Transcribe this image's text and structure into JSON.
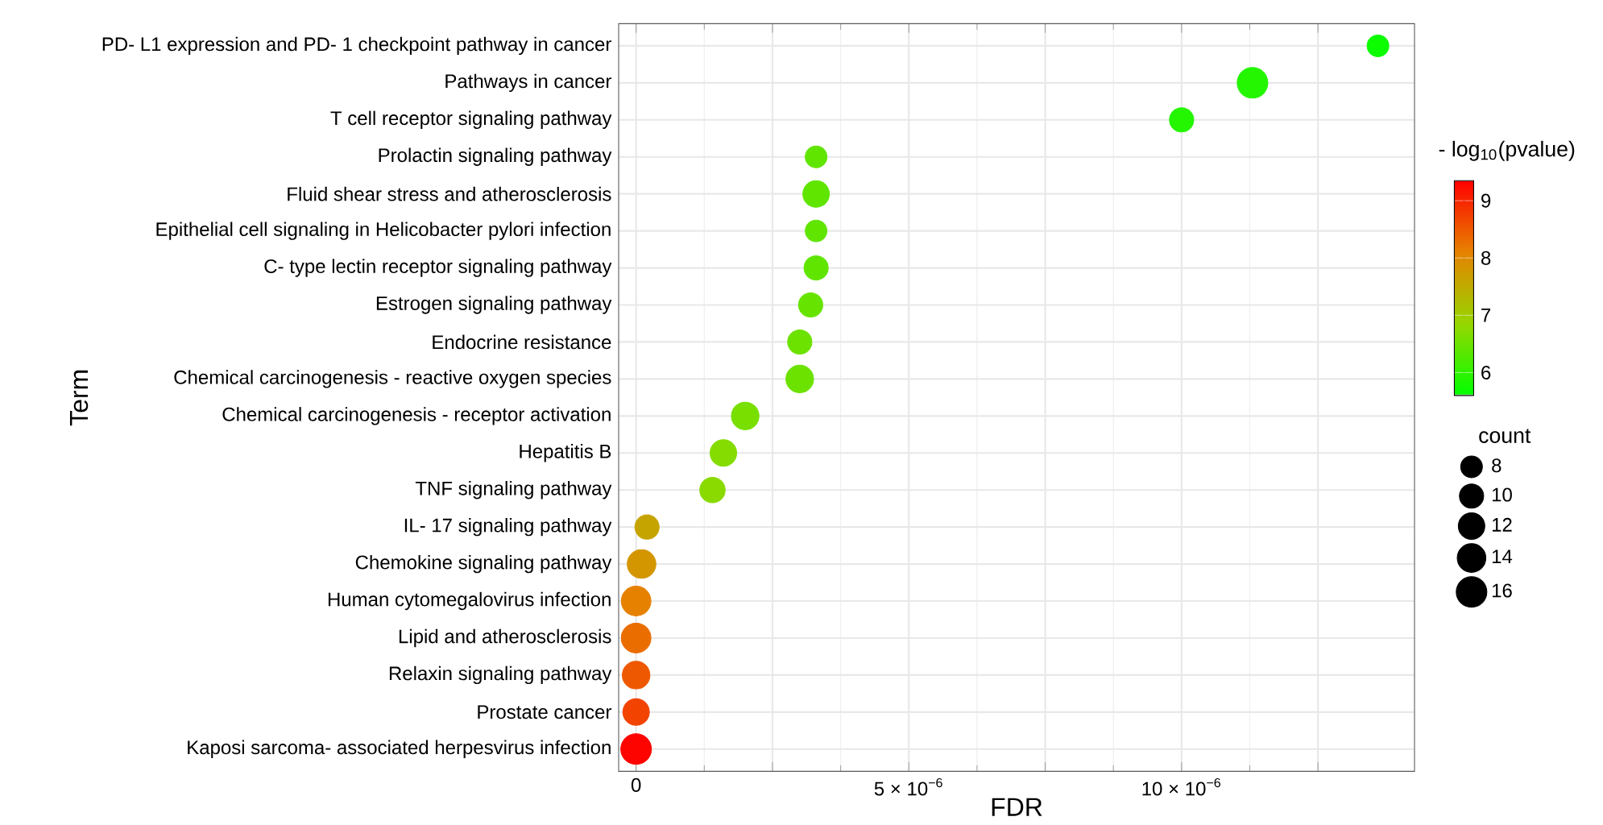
{
  "chart_data": {
    "type": "bubble",
    "orientation": "horizontal",
    "xlabel": "FDR",
    "ylabel": "Term",
    "clabel": "- log$_{10}$(pvalue)",
    "legend_title": "count",
    "grid": true,
    "categories": [
      "PD- L1 expression and PD- 1 checkpoint pathway in cancer",
      "Pathways in cancer",
      "T cell receptor signaling pathway",
      "Prolactin signaling pathway",
      "Fluid shear stress and atherosclerosis",
      "Epithelial cell signaling in Helicobacter pylori infection",
      "C- type lectin receptor signaling pathway",
      "Estrogen signaling pathway",
      "Endocrine resistance",
      "Chemical carcinogenesis -  reactive oxygen species",
      "Chemical carcinogenesis -  receptor activation",
      "Hepatitis B",
      "TNF signaling pathway",
      "IL- 17 signaling pathway",
      "Chemokine signaling pathway",
      "Human cytomegalovirus infection",
      "Lipid and atherosclerosis",
      "Relaxin signaling pathway",
      "Prostate cancer",
      "Kaposi sarcoma- associated herpesvirus infection"
    ],
    "values": [
      1.36e-05,
      1.13e-05,
      1e-05,
      3.3e-06,
      3.3e-06,
      3.3e-06,
      3.3e-06,
      3.2e-06,
      3e-06,
      3e-06,
      2e-06,
      1.6e-06,
      1.4e-06,
      2e-07,
      1e-07,
      0,
      0,
      0,
      0,
      0
    ],
    "sizes": [
      8,
      16,
      10,
      8,
      12,
      8,
      10,
      10,
      10,
      13,
      13,
      12,
      11,
      10,
      14,
      15,
      15,
      13,
      12,
      16
    ],
    "size_legend": [
      8,
      10,
      12,
      14,
      16
    ],
    "cvalues": [
      5.7,
      5.9,
      5.9,
      6.4,
      6.4,
      6.4,
      6.4,
      6.45,
      6.5,
      6.5,
      6.6,
      6.7,
      6.75,
      7.6,
      7.8,
      8.1,
      8.3,
      8.5,
      8.7,
      9.3
    ],
    "clim": [
      5.6,
      9.35
    ],
    "cticks": [
      6,
      7,
      8,
      9
    ],
    "xlim": [
      -3.2e-07,
      1.427e-05
    ],
    "xticks": [
      0,
      {
        "value": 2.5e-06,
        "label": null
      },
      {
        "value": 5e-06,
        "label": "5 × 10$^{−6}$"
      },
      {
        "value": 7.5e-06,
        "label": null
      },
      {
        "value": 1e-05,
        "label": "10 × 10$^{−6}$"
      },
      {
        "value": 1.25e-05,
        "label": null
      }
    ]
  }
}
